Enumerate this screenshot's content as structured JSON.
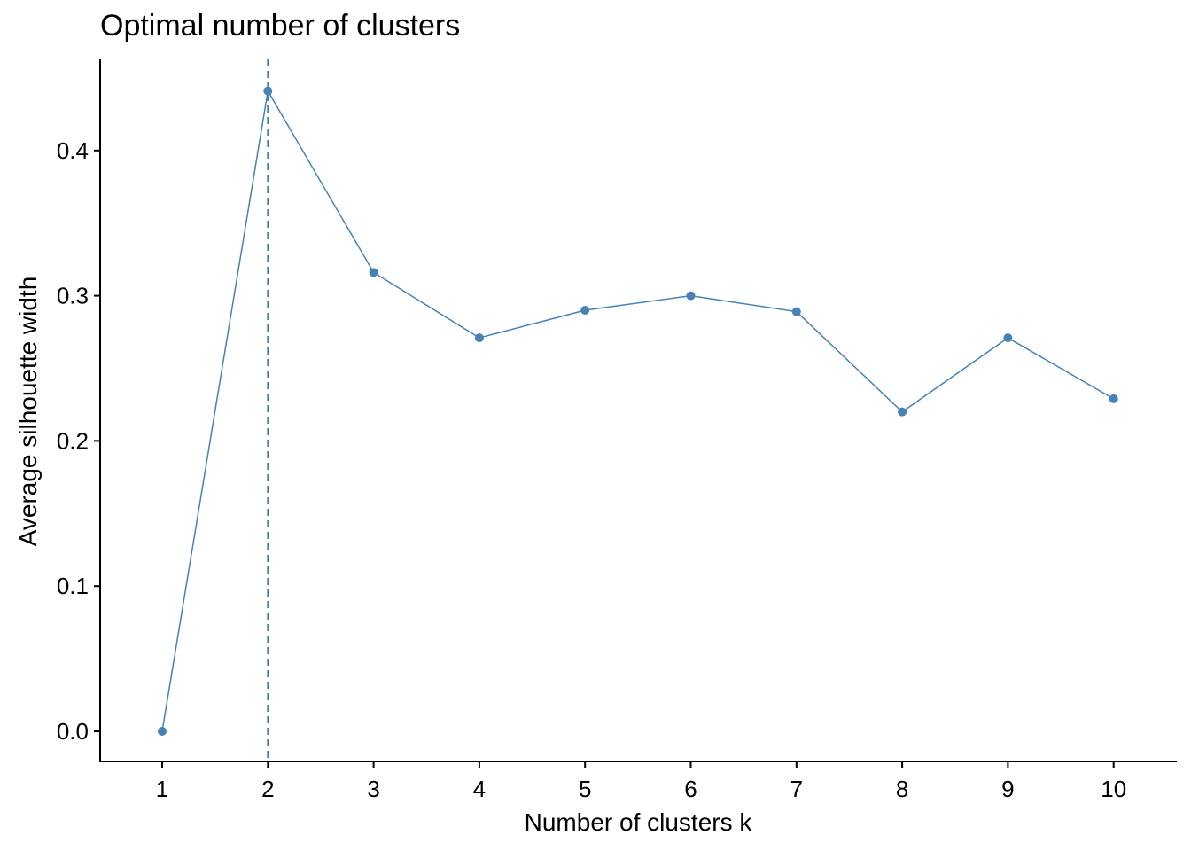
{
  "chart_data": {
    "type": "line",
    "title": "Optimal number of clusters",
    "xlabel": "Number of clusters k",
    "ylabel": "Average silhouette width",
    "categories": [
      "1",
      "2",
      "3",
      "4",
      "5",
      "6",
      "7",
      "8",
      "9",
      "10"
    ],
    "series": [
      {
        "name": "Average silhouette width",
        "values": [
          0.0,
          0.441,
          0.316,
          0.271,
          0.29,
          0.3,
          0.289,
          0.22,
          0.271,
          0.229
        ],
        "color": "#4682B4"
      }
    ],
    "optimal_k": 2,
    "annotations": [
      {
        "type": "vline",
        "x": 2,
        "style": "dashed",
        "color": "#4682B4"
      }
    ],
    "yticks": [
      "0.0",
      "0.1",
      "0.2",
      "0.3",
      "0.4"
    ],
    "ylim": [
      -0.02,
      0.463
    ],
    "grid": false,
    "legend": "none"
  }
}
